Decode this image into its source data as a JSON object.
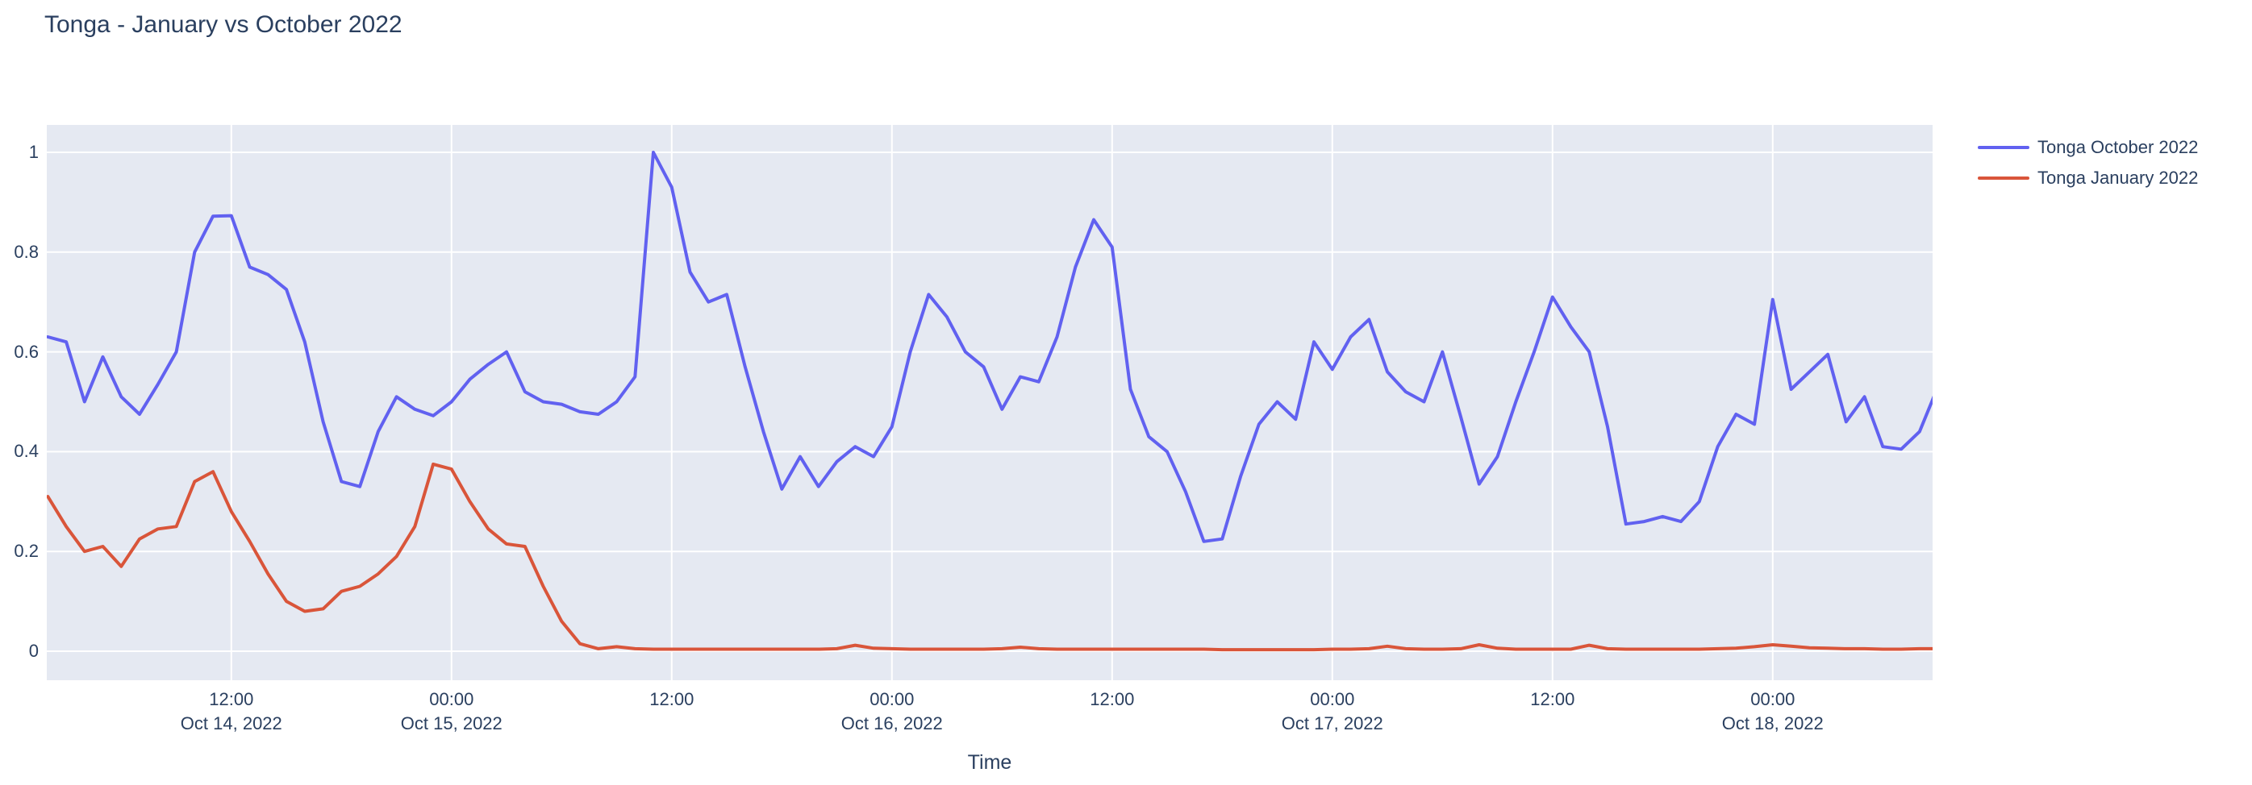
{
  "title": "Tonga - January vs October 2022",
  "colors": {
    "october_line": "#6161f0",
    "january_line": "#d9553a",
    "plot_background": "#e5e9f2",
    "gridline": "#ffffff",
    "text": "#2a3f5f"
  },
  "axes": {
    "x_title": "Time",
    "y_ticks": [
      "0",
      "0.2",
      "0.4",
      "0.6",
      "0.8",
      "1"
    ],
    "x_ticks": [
      {
        "time": "12:00",
        "date": "Oct 14, 2022"
      },
      {
        "time": "00:00",
        "date": "Oct 15, 2022"
      },
      {
        "time": "12:00",
        "date": ""
      },
      {
        "time": "00:00",
        "date": "Oct 16, 2022"
      },
      {
        "time": "12:00",
        "date": ""
      },
      {
        "time": "00:00",
        "date": "Oct 17, 2022"
      },
      {
        "time": "12:00",
        "date": ""
      },
      {
        "time": "00:00",
        "date": "Oct 18, 2022"
      }
    ]
  },
  "legend": {
    "items": [
      {
        "label": "Tonga October 2022",
        "color": "#6161f0"
      },
      {
        "label": "Tonga January 2022",
        "color": "#d9553a"
      }
    ]
  },
  "chart_data": {
    "type": "line",
    "title": "Tonga - January vs October 2022",
    "xlabel": "Time",
    "ylabel": "",
    "grid": true,
    "legend_position": "right",
    "ylim": [
      -0.058,
      1.055
    ],
    "x_range": [
      "2022-10-14 02:00",
      "2022-10-18 08:45"
    ],
    "x_step_hours": 1,
    "x": [
      "2022-10-14 02:00",
      "2022-10-14 03:00",
      "2022-10-14 04:00",
      "2022-10-14 05:00",
      "2022-10-14 06:00",
      "2022-10-14 07:00",
      "2022-10-14 08:00",
      "2022-10-14 09:00",
      "2022-10-14 10:00",
      "2022-10-14 11:00",
      "2022-10-14 12:00",
      "2022-10-14 13:00",
      "2022-10-14 14:00",
      "2022-10-14 15:00",
      "2022-10-14 16:00",
      "2022-10-14 17:00",
      "2022-10-14 18:00",
      "2022-10-14 19:00",
      "2022-10-14 20:00",
      "2022-10-14 21:00",
      "2022-10-14 22:00",
      "2022-10-14 23:00",
      "2022-10-15 00:00",
      "2022-10-15 01:00",
      "2022-10-15 02:00",
      "2022-10-15 03:00",
      "2022-10-15 04:00",
      "2022-10-15 05:00",
      "2022-10-15 06:00",
      "2022-10-15 07:00",
      "2022-10-15 08:00",
      "2022-10-15 09:00",
      "2022-10-15 10:00",
      "2022-10-15 11:00",
      "2022-10-15 12:00",
      "2022-10-15 13:00",
      "2022-10-15 14:00",
      "2022-10-15 15:00",
      "2022-10-15 16:00",
      "2022-10-15 17:00",
      "2022-10-15 18:00",
      "2022-10-15 19:00",
      "2022-10-15 20:00",
      "2022-10-15 21:00",
      "2022-10-15 22:00",
      "2022-10-15 23:00",
      "2022-10-16 00:00",
      "2022-10-16 01:00",
      "2022-10-16 02:00",
      "2022-10-16 03:00",
      "2022-10-16 04:00",
      "2022-10-16 05:00",
      "2022-10-16 06:00",
      "2022-10-16 07:00",
      "2022-10-16 08:00",
      "2022-10-16 09:00",
      "2022-10-16 10:00",
      "2022-10-16 11:00",
      "2022-10-16 12:00",
      "2022-10-16 13:00",
      "2022-10-16 14:00",
      "2022-10-16 15:00",
      "2022-10-16 16:00",
      "2022-10-16 17:00",
      "2022-10-16 18:00",
      "2022-10-16 19:00",
      "2022-10-16 20:00",
      "2022-10-16 21:00",
      "2022-10-16 22:00",
      "2022-10-16 23:00",
      "2022-10-17 00:00",
      "2022-10-17 01:00",
      "2022-10-17 02:00",
      "2022-10-17 03:00",
      "2022-10-17 04:00",
      "2022-10-17 05:00",
      "2022-10-17 06:00",
      "2022-10-17 07:00",
      "2022-10-17 08:00",
      "2022-10-17 09:00",
      "2022-10-17 10:00",
      "2022-10-17 11:00",
      "2022-10-17 12:00",
      "2022-10-17 13:00",
      "2022-10-17 14:00",
      "2022-10-17 15:00",
      "2022-10-17 16:00",
      "2022-10-17 17:00",
      "2022-10-17 18:00",
      "2022-10-17 19:00",
      "2022-10-17 20:00",
      "2022-10-17 21:00",
      "2022-10-17 22:00",
      "2022-10-17 23:00",
      "2022-10-18 00:00",
      "2022-10-18 01:00",
      "2022-10-18 02:00",
      "2022-10-18 03:00",
      "2022-10-18 04:00",
      "2022-10-18 05:00",
      "2022-10-18 06:00",
      "2022-10-18 07:00",
      "2022-10-18 08:00",
      "2022-10-18 09:00"
    ],
    "series": [
      {
        "name": "Tonga October 2022",
        "color": "#6161f0",
        "values": [
          0.63,
          0.62,
          0.5,
          0.59,
          0.51,
          0.475,
          0.535,
          0.6,
          0.8,
          0.872,
          0.873,
          0.77,
          0.755,
          0.725,
          0.62,
          0.46,
          0.34,
          0.33,
          0.44,
          0.51,
          0.485,
          0.472,
          0.5,
          0.545,
          0.575,
          0.6,
          0.52,
          0.5,
          0.495,
          0.48,
          0.475,
          0.5,
          0.55,
          1.0,
          0.93,
          0.76,
          0.7,
          0.715,
          0.57,
          0.44,
          0.325,
          0.39,
          0.33,
          0.38,
          0.41,
          0.39,
          0.45,
          0.6,
          0.715,
          0.67,
          0.6,
          0.57,
          0.485,
          0.55,
          0.54,
          0.63,
          0.77,
          0.865,
          0.81,
          0.525,
          0.43,
          0.4,
          0.32,
          0.22,
          0.225,
          0.35,
          0.455,
          0.5,
          0.465,
          0.62,
          0.565,
          0.63,
          0.665,
          0.56,
          0.52,
          0.5,
          0.6,
          0.47,
          0.335,
          0.39,
          0.5,
          0.6,
          0.71,
          0.65,
          0.6,
          0.45,
          0.255,
          0.26,
          0.27,
          0.26,
          0.3,
          0.41,
          0.475,
          0.455,
          0.705,
          0.525,
          0.56,
          0.595,
          0.46,
          0.51,
          0.41,
          0.405,
          0.44,
          0.53
        ]
      },
      {
        "name": "Tonga January 2022",
        "color": "#d9553a",
        "values": [
          0.31,
          0.25,
          0.2,
          0.21,
          0.17,
          0.225,
          0.245,
          0.25,
          0.34,
          0.36,
          0.28,
          0.22,
          0.155,
          0.1,
          0.08,
          0.085,
          0.12,
          0.13,
          0.155,
          0.19,
          0.25,
          0.375,
          0.365,
          0.3,
          0.245,
          0.215,
          0.21,
          0.13,
          0.06,
          0.015,
          0.005,
          0.009,
          0.005,
          0.004,
          0.004,
          0.004,
          0.004,
          0.004,
          0.004,
          0.004,
          0.004,
          0.004,
          0.004,
          0.005,
          0.012,
          0.006,
          0.005,
          0.004,
          0.004,
          0.004,
          0.004,
          0.004,
          0.005,
          0.008,
          0.005,
          0.004,
          0.004,
          0.004,
          0.004,
          0.004,
          0.004,
          0.004,
          0.004,
          0.004,
          0.003,
          0.003,
          0.003,
          0.003,
          0.003,
          0.003,
          0.004,
          0.004,
          0.005,
          0.01,
          0.005,
          0.004,
          0.004,
          0.005,
          0.013,
          0.006,
          0.004,
          0.004,
          0.004,
          0.004,
          0.012,
          0.005,
          0.004,
          0.004,
          0.004,
          0.004,
          0.004,
          0.005,
          0.006,
          0.009,
          0.013,
          0.01,
          0.007,
          0.006,
          0.005,
          0.005,
          0.004,
          0.004,
          0.005,
          0.005
        ]
      }
    ]
  }
}
